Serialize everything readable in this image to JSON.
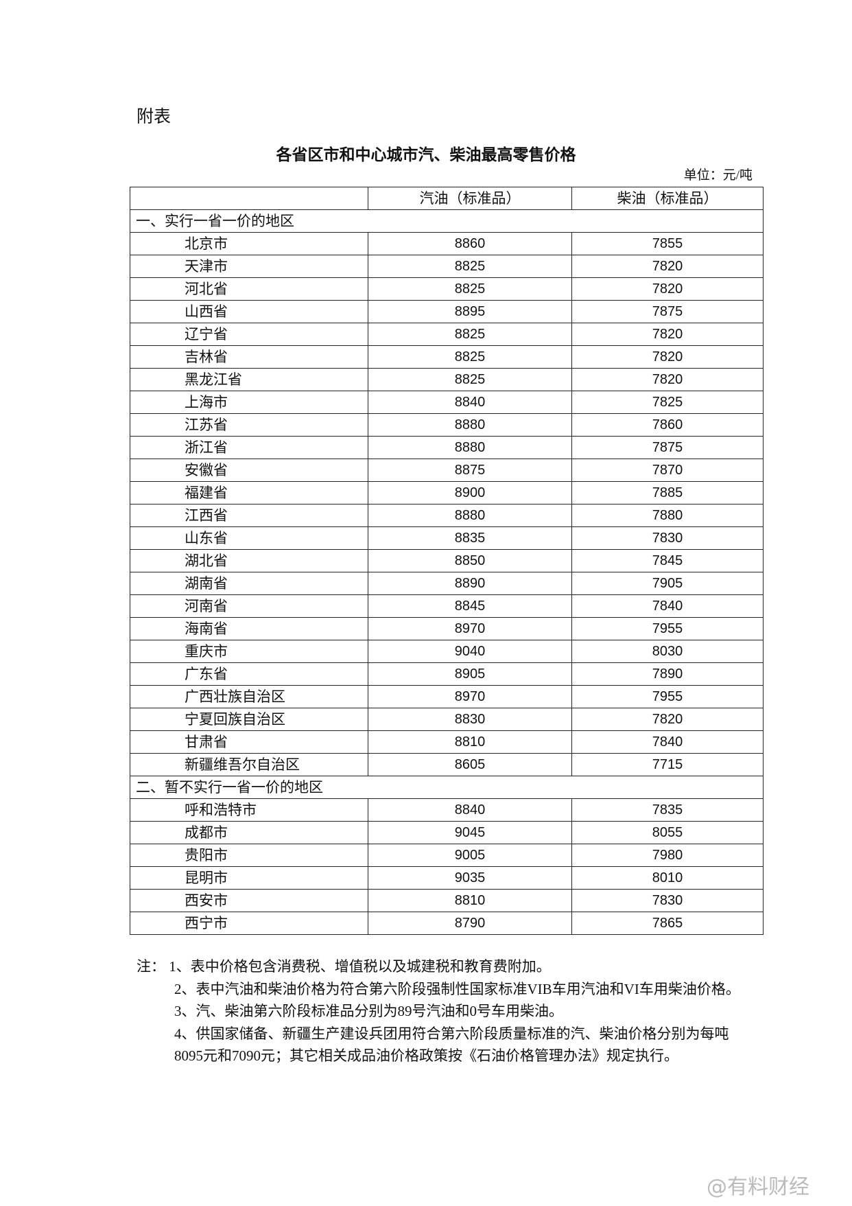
{
  "appendix_label": "附表",
  "title": "各省区市和中心城市汽、柴油最高零售价格",
  "unit": "单位：元/吨",
  "columns": [
    "",
    "汽油（标准品）",
    "柴油（标准品）"
  ],
  "sections": [
    {
      "label": "一、实行一省一价的地区",
      "rows": [
        [
          "北京市",
          "8860",
          "7855"
        ],
        [
          "天津市",
          "8825",
          "7820"
        ],
        [
          "河北省",
          "8825",
          "7820"
        ],
        [
          "山西省",
          "8895",
          "7875"
        ],
        [
          "辽宁省",
          "8825",
          "7820"
        ],
        [
          "吉林省",
          "8825",
          "7820"
        ],
        [
          "黑龙江省",
          "8825",
          "7820"
        ],
        [
          "上海市",
          "8840",
          "7825"
        ],
        [
          "江苏省",
          "8880",
          "7860"
        ],
        [
          "浙江省",
          "8880",
          "7875"
        ],
        [
          "安徽省",
          "8875",
          "7870"
        ],
        [
          "福建省",
          "8900",
          "7885"
        ],
        [
          "江西省",
          "8880",
          "7880"
        ],
        [
          "山东省",
          "8835",
          "7830"
        ],
        [
          "湖北省",
          "8850",
          "7845"
        ],
        [
          "湖南省",
          "8890",
          "7905"
        ],
        [
          "河南省",
          "8845",
          "7840"
        ],
        [
          "海南省",
          "8970",
          "7955"
        ],
        [
          "重庆市",
          "9040",
          "8030"
        ],
        [
          "广东省",
          "8905",
          "7890"
        ],
        [
          "广西壮族自治区",
          "8970",
          "7955"
        ],
        [
          "宁夏回族自治区",
          "8830",
          "7820"
        ],
        [
          "甘肃省",
          "8810",
          "7840"
        ],
        [
          "新疆维吾尔自治区",
          "8605",
          "7715"
        ]
      ]
    },
    {
      "label": "二、暂不实行一省一价的地区",
      "rows": [
        [
          "呼和浩特市",
          "8840",
          "7835"
        ],
        [
          "成都市",
          "9045",
          "8055"
        ],
        [
          "贵阳市",
          "9005",
          "7980"
        ],
        [
          "昆明市",
          "9035",
          "8010"
        ],
        [
          "西安市",
          "8810",
          "7830"
        ],
        [
          "西宁市",
          "8790",
          "7865"
        ]
      ]
    }
  ],
  "notes": [
    "注：  1、表中价格包含消费税、增值税以及城建税和教育费附加。",
    "2、表中汽油和柴油价格为符合第六阶段强制性国家标准VIB车用汽油和VI车用柴油价格。",
    "3、汽、柴油第六阶段标准品分别为89号汽油和0号车用柴油。",
    "4、供国家储备、新疆生产建设兵团用符合第六阶段质量标准的汽、柴油价格分别为每吨8095元和7090元；其它相关成品油价格政策按《石油价格管理办法》规定执行。"
  ],
  "watermark": "@有料财经"
}
